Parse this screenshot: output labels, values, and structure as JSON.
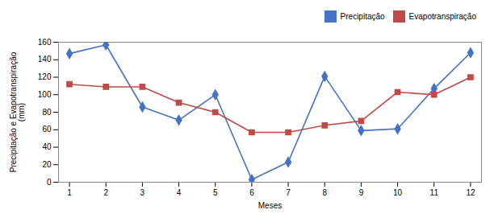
{
  "chart_data": {
    "type": "line",
    "xlabel": "Meses",
    "ylabel": "Precipitação e Evapotranspiração\n(mm)",
    "x": [
      1,
      2,
      3,
      4,
      5,
      6,
      7,
      8,
      9,
      10,
      11,
      12
    ],
    "series": [
      {
        "name": "Precipitação",
        "color": "#4472C4",
        "marker": "diamond",
        "values": [
          147,
          157,
          86,
          71,
          100,
          3,
          23,
          121,
          59,
          61,
          107,
          148
        ]
      },
      {
        "name": "Evapotranspiração",
        "color": "#BE4B48",
        "marker": "square",
        "values": [
          112,
          109,
          109,
          91,
          80,
          57,
          57,
          65,
          70,
          103,
          100,
          120
        ]
      }
    ],
    "xlim": [
      0.7,
      12.3
    ],
    "xticks": [
      1,
      2,
      3,
      4,
      5,
      6,
      7,
      8,
      9,
      10,
      11,
      12
    ],
    "ylim": [
      0,
      160
    ],
    "yticks": [
      0,
      20,
      40,
      60,
      80,
      100,
      120,
      140,
      160
    ],
    "grid": false,
    "legend": "upper right"
  }
}
